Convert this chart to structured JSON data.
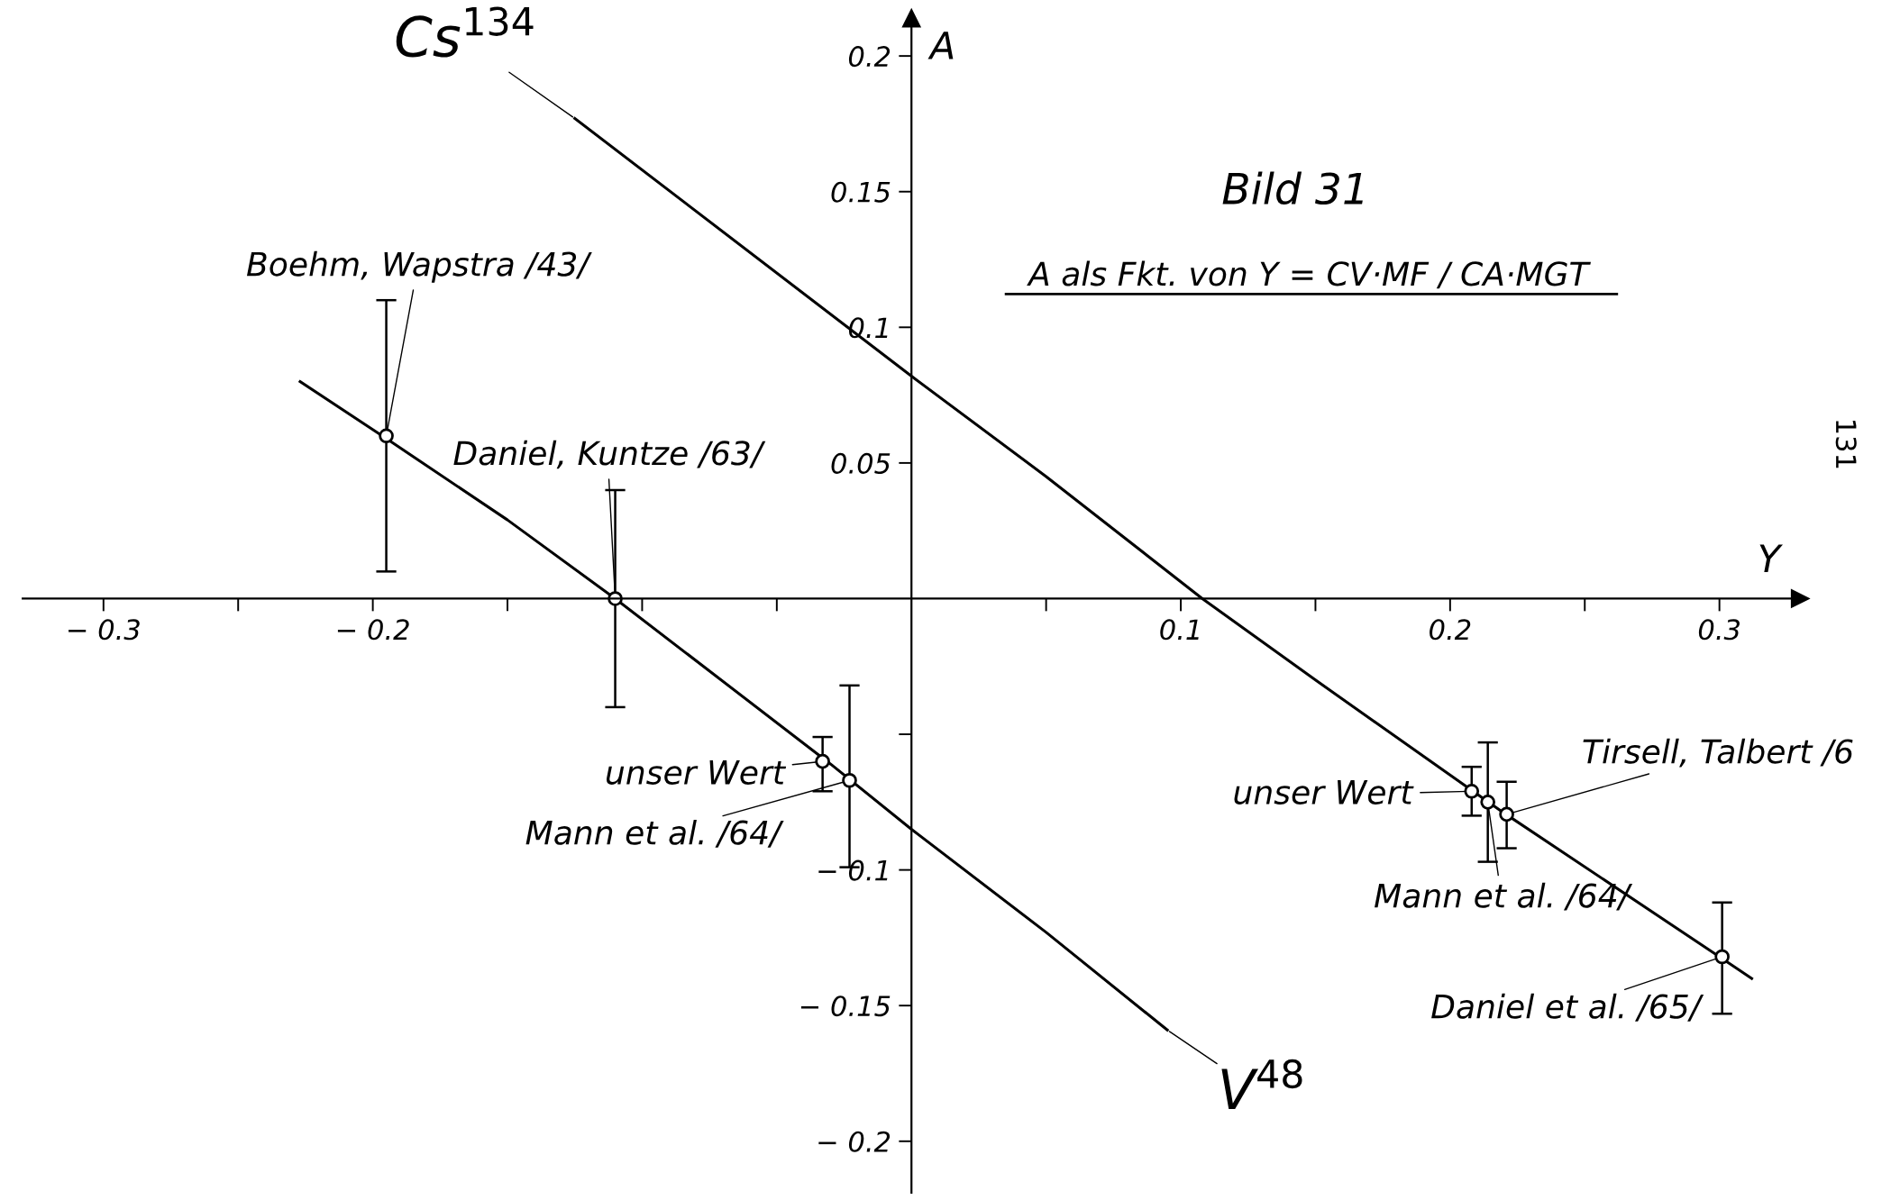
{
  "chart_data": {
    "type": "line",
    "title": "Bild 31",
    "subtitle": "A als Fkt. von Y = CV·MF / CA·MGT",
    "xlabel": "Y",
    "ylabel": "A",
    "xlim": [
      -0.33,
      0.33
    ],
    "ylim": [
      -0.219,
      0.214
    ],
    "xticks": [
      {
        "value": -0.3,
        "label": "− 0.3"
      },
      {
        "value": -0.25,
        "label": null
      },
      {
        "value": -0.2,
        "label": "− 0.2"
      },
      {
        "value": -0.15,
        "label": null
      },
      {
        "value": -0.1,
        "label": null
      },
      {
        "value": -0.05,
        "label": null
      },
      {
        "value": 0.05,
        "label": null
      },
      0.1,
      {
        "value": 0.15,
        "label": null
      },
      0.2,
      {
        "value": 0.25,
        "label": null
      },
      0.3
    ],
    "yticks": [
      {
        "value": -0.2,
        "label": "− 0.2"
      },
      {
        "value": -0.15,
        "label": "− 0.15"
      },
      {
        "value": -0.1,
        "label": "− 0.1"
      },
      {
        "value": -0.05,
        "label": null
      },
      0.05,
      0.1,
      0.15,
      0.2
    ],
    "grid": false,
    "series": [
      {
        "name": "Cs$^{134}$",
        "color": "#000000",
        "marker": "none",
        "x": [
          -0.125,
          0,
          0.05,
          0.108,
          0.15,
          0.22,
          0.3,
          0.312
        ],
        "values": [
          0.177,
          0.082,
          0.045,
          0,
          -0.03,
          -0.079,
          -0.132,
          -0.14
        ]
      },
      {
        "name": "V$^{48}$",
        "color": "#000000",
        "marker": "none",
        "x": [
          -0.227,
          -0.195,
          -0.15,
          -0.11,
          -0.03,
          0,
          0.05,
          0.095
        ],
        "values": [
          0.08,
          0.059,
          0.029,
          0,
          -0.061,
          -0.085,
          -0.123,
          -0.159
        ]
      },
      {
        "type": "scatter",
        "color": "#000000",
        "marker": "circle",
        "x": [
          -0.195,
          -0.11,
          -0.033,
          -0.023
        ],
        "values": [
          0.06,
          0,
          -0.06,
          -0.067
        ],
        "errors": [
          [
            0.01,
            0.11
          ],
          [
            -0.04,
            0.04
          ],
          [
            -0.071,
            -0.051
          ],
          [
            -0.099,
            -0.032
          ]
        ]
      },
      {
        "type": "scatter",
        "color": "#000000",
        "marker": "circle",
        "x": [
          0.208,
          0.214,
          0.221,
          0.301
        ],
        "values": [
          -0.071,
          -0.075,
          -0.0795,
          -0.132
        ],
        "errors": [
          [
            -0.08,
            -0.062
          ],
          [
            -0.097,
            -0.053
          ],
          [
            -0.092,
            -0.0675
          ],
          [
            -0.153,
            -0.112
          ]
        ]
      }
    ],
    "annotations": [
      {
        "text": "Boehm, Wapstra /43/",
        "x": -0.195,
        "y": 0.06
      },
      {
        "text": "Daniel, Kuntze /63/",
        "x": -0.11,
        "y": 0
      },
      {
        "text": "unser Wert",
        "x": -0.033,
        "y": -0.06
      },
      {
        "text": "Mann et al. /64/",
        "x": -0.023,
        "y": -0.067
      },
      {
        "text": "unser Wert",
        "x": 0.208,
        "y": -0.071
      },
      {
        "text": "Mann et al. /64/",
        "x": 0.214,
        "y": -0.075
      },
      {
        "text": "Tirsell, Talbert /6",
        "x": 0.221,
        "y": -0.0795
      },
      {
        "text": "Daniel et al. /65/",
        "x": 0.301,
        "y": -0.132
      },
      "131"
    ]
  }
}
